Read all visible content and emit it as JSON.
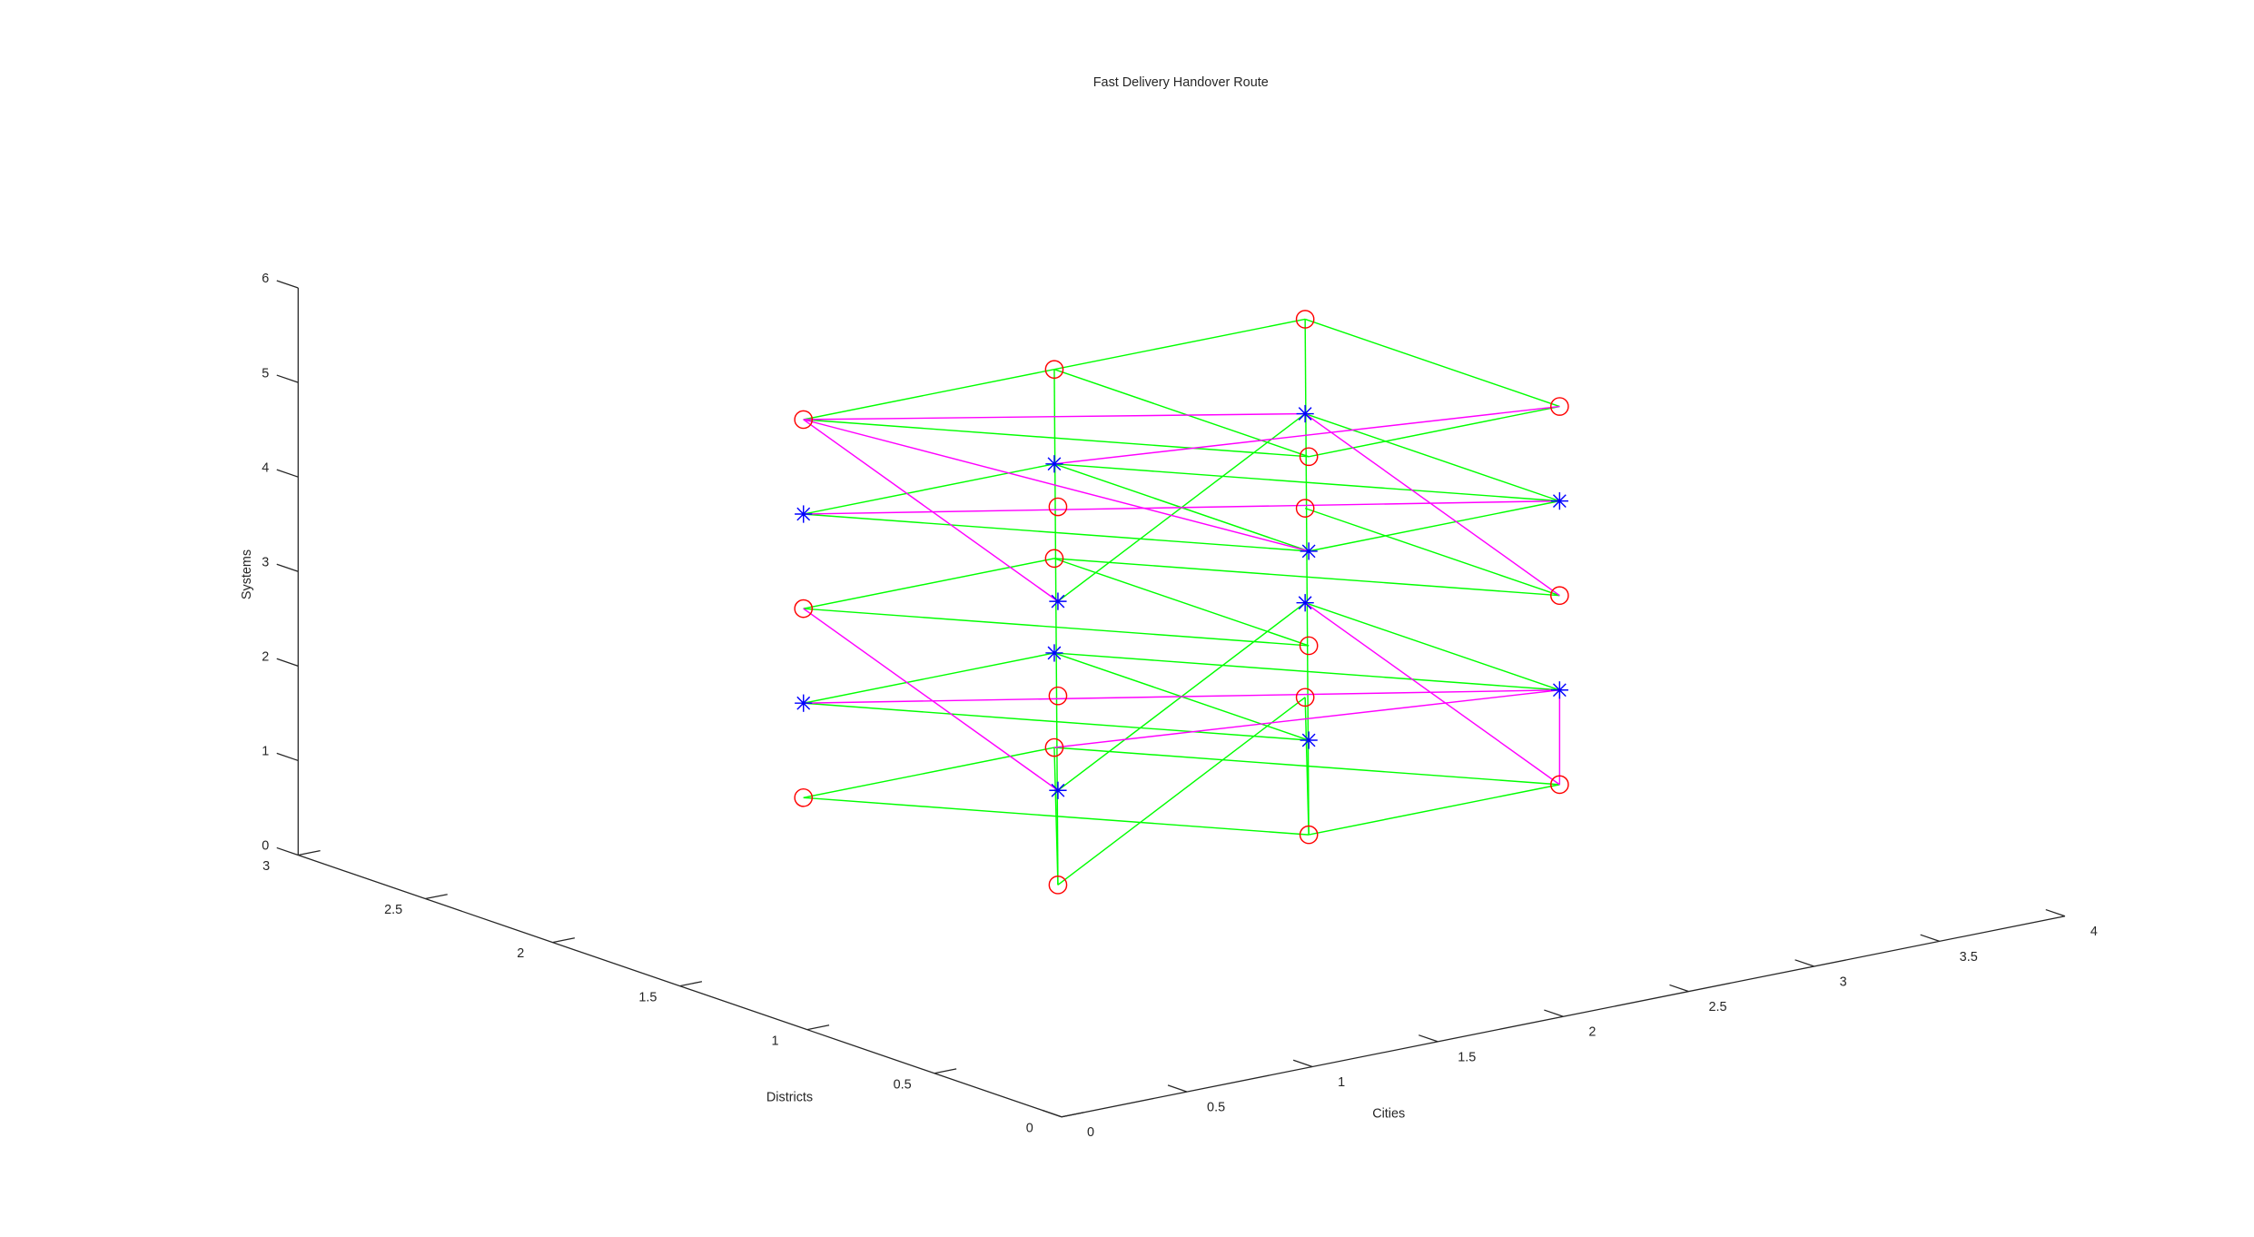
{
  "chart_data": {
    "type": "scatter3d",
    "title": "Fast Delivery Handover Route",
    "xlabel": "Cities",
    "ylabel": "Districts",
    "zlabel": "Systems",
    "xlim": [
      0,
      4
    ],
    "ylim": [
      0,
      3
    ],
    "zlim": [
      0,
      6
    ],
    "xticks": [
      0,
      0.5,
      1,
      1.5,
      2,
      2.5,
      3,
      3.5,
      4
    ],
    "yticks": [
      0,
      0.5,
      1,
      1.5,
      2,
      2.5,
      3
    ],
    "zticks": [
      0,
      1,
      2,
      3,
      4,
      5,
      6
    ],
    "markers": [
      {
        "marker": "o",
        "color": "#ff0000",
        "x": [
          1,
          1,
          2,
          2,
          3,
          3,
          1,
          1,
          2,
          2,
          3,
          3,
          1,
          1,
          2,
          2,
          3,
          3
        ],
        "y": [
          2,
          1,
          2,
          1,
          2,
          1,
          2,
          1,
          2,
          1,
          2,
          1,
          2,
          1,
          2,
          1,
          2,
          1
        ],
        "z": [
          1,
          1,
          1,
          1,
          1,
          1,
          3,
          3,
          3,
          3,
          3,
          3,
          5,
          5,
          5,
          5,
          5,
          5
        ]
      },
      {
        "marker": "*",
        "color": "#0000ff",
        "x": [
          1,
          1,
          2,
          2,
          3,
          3,
          1,
          1,
          2,
          2,
          3,
          3
        ],
        "y": [
          2,
          1,
          2,
          1,
          2,
          1,
          2,
          1,
          2,
          1,
          2,
          1
        ],
        "z": [
          2,
          2,
          2,
          2,
          2,
          2,
          4,
          4,
          4,
          4,
          4,
          4
        ]
      }
    ],
    "edges": [
      {
        "color": "#00ff00",
        "segments": [
          [
            1,
            2,
            1,
            2,
            1,
            1
          ],
          [
            1,
            2,
            1,
            2,
            2,
            1
          ],
          [
            1,
            1,
            1,
            2,
            2,
            1
          ],
          [
            1,
            1,
            1,
            3,
            2,
            1
          ],
          [
            2,
            2,
            1,
            3,
            1,
            1
          ],
          [
            2,
            1,
            1,
            3,
            1,
            1
          ],
          [
            2,
            1,
            1,
            3,
            2,
            1
          ],
          [
            1,
            2,
            2,
            2,
            2,
            2
          ],
          [
            1,
            2,
            2,
            2,
            1,
            2
          ],
          [
            2,
            2,
            2,
            2,
            1,
            2
          ],
          [
            2,
            2,
            2,
            3,
            1,
            2
          ],
          [
            3,
            2,
            2,
            3,
            1,
            2
          ],
          [
            1,
            1,
            2,
            3,
            2,
            2
          ],
          [
            1,
            2,
            3,
            2,
            2,
            3
          ],
          [
            1,
            2,
            3,
            2,
            1,
            3
          ],
          [
            2,
            2,
            3,
            2,
            1,
            3
          ],
          [
            2,
            2,
            3,
            3,
            1,
            3
          ],
          [
            3,
            2,
            3,
            3,
            1,
            3
          ],
          [
            1,
            2,
            4,
            2,
            2,
            4
          ],
          [
            1,
            2,
            4,
            2,
            1,
            4
          ],
          [
            2,
            2,
            4,
            2,
            1,
            4
          ],
          [
            2,
            2,
            4,
            3,
            1,
            4
          ],
          [
            2,
            1,
            4,
            3,
            1,
            4
          ],
          [
            3,
            2,
            4,
            3,
            1,
            4
          ],
          [
            1,
            1,
            4,
            3,
            2,
            4
          ],
          [
            1,
            2,
            5,
            2,
            2,
            5
          ],
          [
            2,
            2,
            5,
            3,
            2,
            5
          ],
          [
            3,
            2,
            5,
            3,
            1,
            5
          ],
          [
            1,
            2,
            5,
            2,
            1,
            5
          ],
          [
            2,
            2,
            5,
            2,
            1,
            5
          ],
          [
            2,
            1,
            5,
            3,
            1,
            5
          ],
          [
            2,
            2,
            5,
            1,
            1,
            1
          ],
          [
            3,
            2,
            5,
            2,
            1,
            1
          ]
        ]
      },
      {
        "color": "#ff00ff",
        "segments": [
          [
            1,
            2,
            5,
            3,
            2,
            4
          ],
          [
            2,
            2,
            4,
            3,
            1,
            5
          ],
          [
            1,
            2,
            5,
            1,
            1,
            4
          ],
          [
            1,
            2,
            5,
            2,
            1,
            4
          ],
          [
            3,
            2,
            4,
            3,
            1,
            3
          ],
          [
            1,
            2,
            4,
            3,
            1,
            4
          ],
          [
            1,
            2,
            3,
            1,
            1,
            2
          ],
          [
            1,
            2,
            2,
            3,
            1,
            2
          ],
          [
            3,
            2,
            2,
            3,
            1,
            1
          ],
          [
            2,
            2,
            1,
            3,
            1,
            2
          ],
          [
            3,
            1,
            2,
            3,
            1,
            1
          ]
        ]
      }
    ]
  }
}
